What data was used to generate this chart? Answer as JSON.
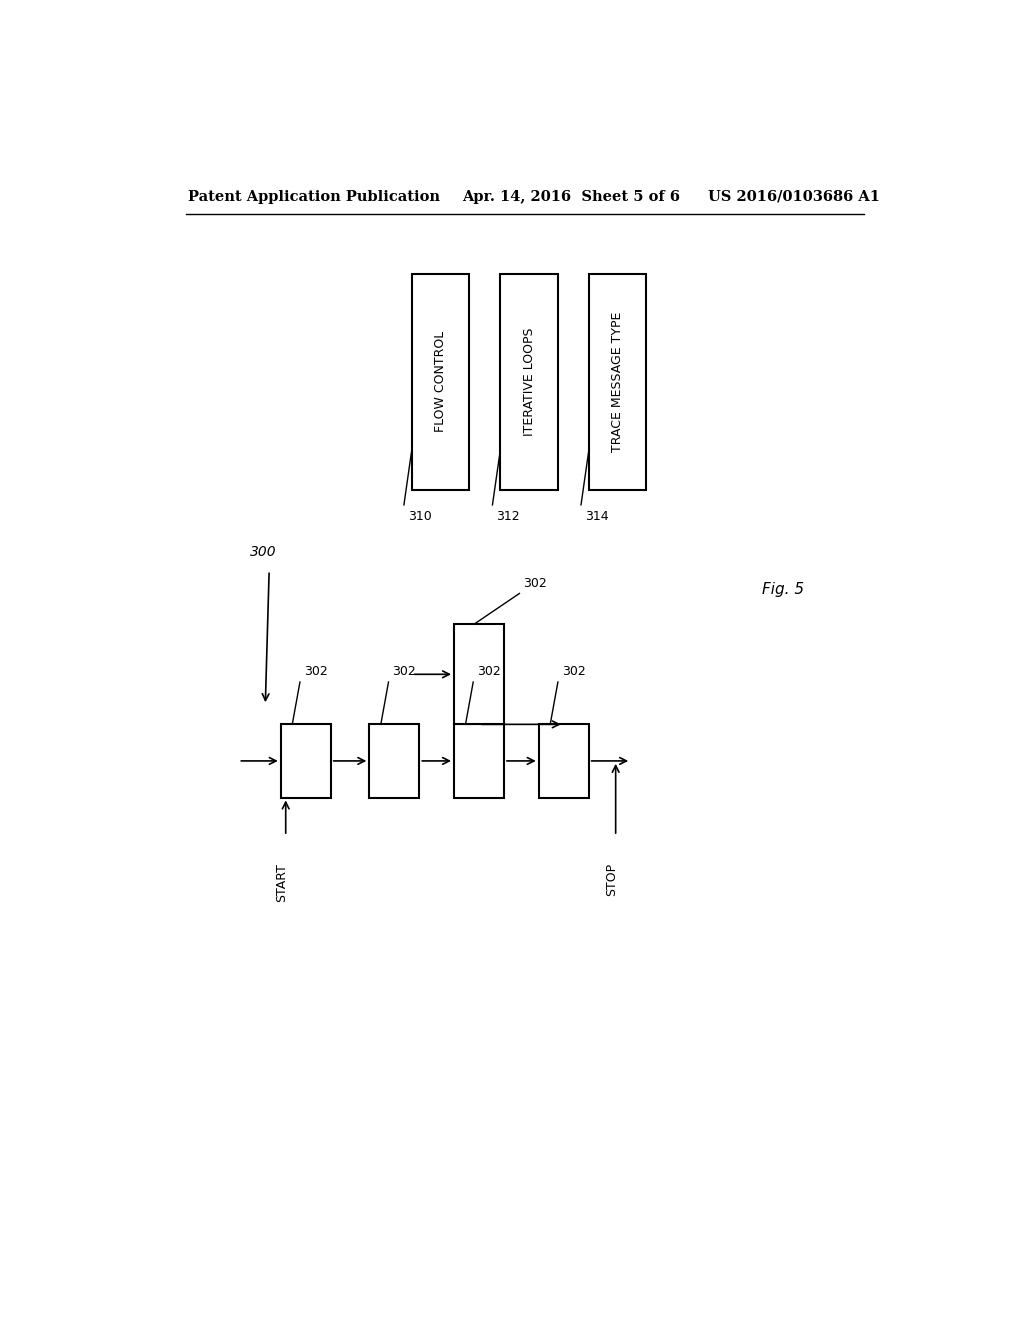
{
  "bg_color": "#ffffff",
  "header_left": "Patent Application Publication",
  "header_mid": "Apr. 14, 2016  Sheet 5 of 6",
  "header_right": "US 2016/0103686 A1",
  "fig_label": "Fig. 5",
  "label_300": "300",
  "label_302": "302",
  "label_310": "310",
  "label_312": "312",
  "label_314": "314",
  "box_310_label": "FLOW CONTROL",
  "box_312_label": "ITERATIVE LOOPS",
  "box_314_label": "TRACE MESSAGE TYPE",
  "start_label": "START",
  "stop_label": "STOP"
}
